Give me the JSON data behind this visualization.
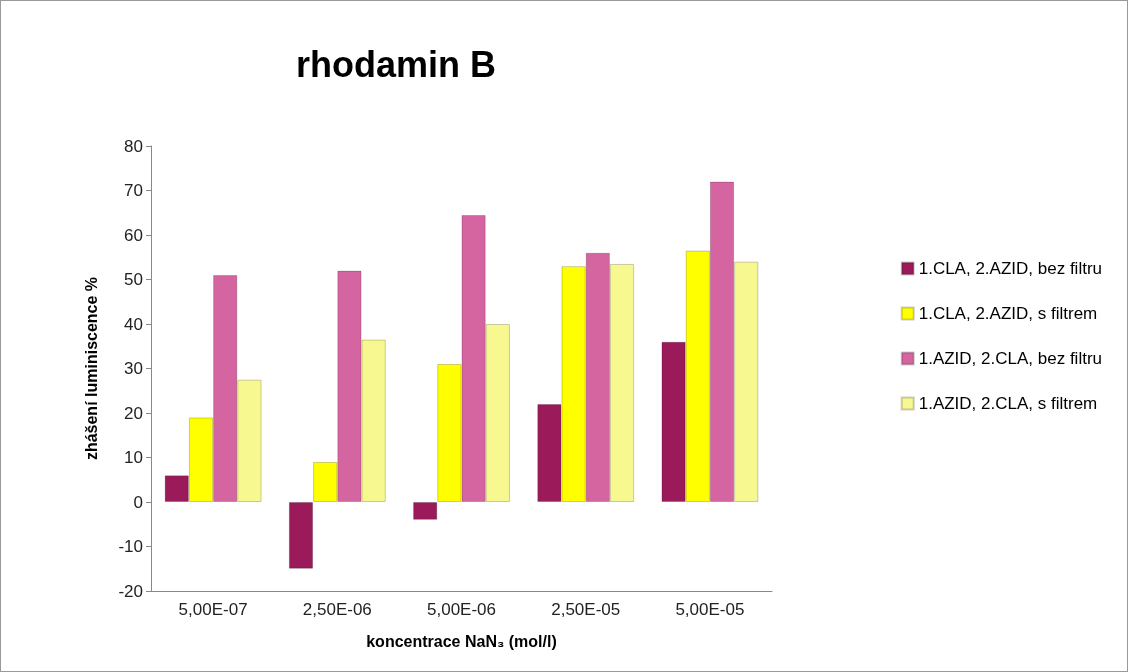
{
  "chart_data": {
    "type": "bar",
    "title": "rhodamin B",
    "xlabel": "koncentrace NaN₃ (mol/l)",
    "ylabel": "zhášení luminiscence %",
    "categories": [
      "5,00E-07",
      "2,50E-06",
      "5,00E-06",
      "2,50E-05",
      "5,00E-05"
    ],
    "series": [
      {
        "name": "1.CLA, 2.AZID, bez filtru",
        "color": "#9b1b5a",
        "values": [
          6,
          -15,
          -4,
          22,
          36
        ]
      },
      {
        "name": "1.CLA, 2.AZID, s filtrem",
        "color": "#ffff00",
        "values": [
          19,
          9,
          31,
          53,
          56.5
        ]
      },
      {
        "name": "1.AZID, 2.CLA, bez filtru",
        "color": "#d565a0",
        "values": [
          51,
          52,
          64.5,
          56,
          72
        ]
      },
      {
        "name": "1.AZID, 2.CLA, s filtrem",
        "color": "#f8f890",
        "values": [
          27.5,
          36.5,
          40,
          53.5,
          54
        ]
      }
    ],
    "ylim": [
      -20,
      80
    ],
    "yticks": [
      -20,
      -10,
      0,
      10,
      20,
      30,
      40,
      50,
      60,
      70,
      80
    ],
    "grid": false,
    "legend": "right"
  }
}
